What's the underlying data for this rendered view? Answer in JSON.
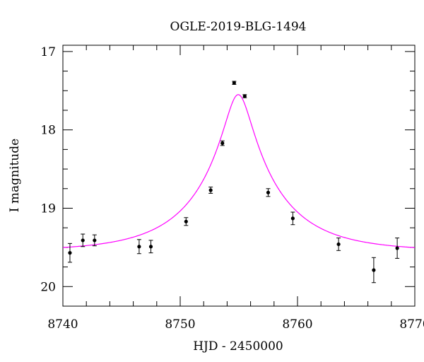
{
  "chart_data": {
    "type": "scatter",
    "title": "OGLE-2019-BLG-1494",
    "xlabel": "HJD - 2450000",
    "ylabel": "I magnitude",
    "xlim": [
      8740,
      8770
    ],
    "ylim": [
      20.25,
      16.92
    ],
    "y_inverted": true,
    "x_major_ticks": [
      8740,
      8750,
      8760,
      8770
    ],
    "x_minor_step": 2,
    "y_major_ticks": [
      17,
      18,
      19,
      20
    ],
    "y_minor_step": 0.25,
    "grid": false,
    "model_color": "#ff00ff",
    "points_color": "#000000",
    "series": [
      {
        "kind": "data",
        "x": [
          8740.6,
          8741.7,
          8742.7,
          8746.5,
          8747.5,
          8750.5,
          8752.6,
          8753.6,
          8754.6,
          8755.5,
          8757.5,
          8759.6,
          8763.5,
          8766.5,
          8768.5
        ],
        "y": [
          19.57,
          19.41,
          19.41,
          19.49,
          19.49,
          19.17,
          18.77,
          18.17,
          17.4,
          17.57,
          18.8,
          19.13,
          19.46,
          19.79,
          19.51
        ],
        "err": [
          0.12,
          0.08,
          0.07,
          0.09,
          0.08,
          0.05,
          0.04,
          0.03,
          0.02,
          0.02,
          0.05,
          0.08,
          0.08,
          0.16,
          0.13
        ]
      },
      {
        "kind": "model",
        "t0": 8754.95,
        "u0": 0.16,
        "tE": 6.8,
        "baseline": 19.55
      }
    ]
  }
}
